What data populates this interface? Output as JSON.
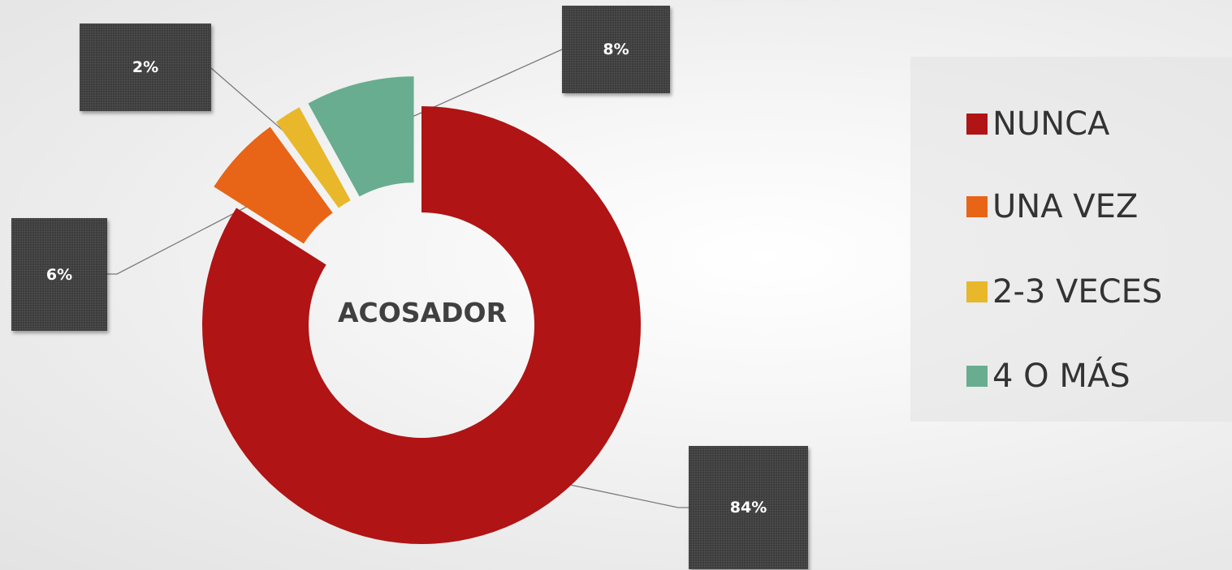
{
  "chart_data": {
    "type": "pie",
    "variant": "doughnut",
    "title": "ACOSADOR",
    "categories": [
      "NUNCA",
      "UNA VEZ",
      "2-3 VECES",
      "4 O MÁS"
    ],
    "values": [
      84,
      6,
      2,
      8
    ],
    "data_labels": [
      "84%",
      "6%",
      "2%",
      "8%"
    ],
    "colors": [
      "#b01414",
      "#e86417",
      "#e8b82a",
      "#68ad8f"
    ],
    "legend": "right",
    "exploded_slices": [
      "UNA VEZ",
      "2-3 VECES",
      "4 O MÁS"
    ]
  }
}
